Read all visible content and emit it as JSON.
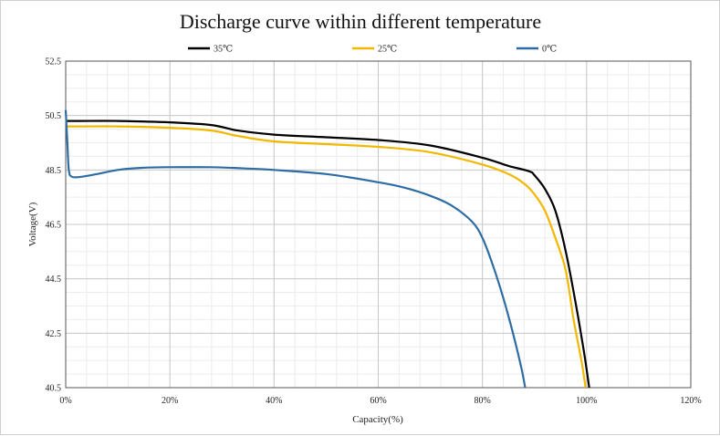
{
  "chart_data": {
    "type": "line",
    "title": "Discharge curve within different temperature",
    "xlabel": "Capacity(%)",
    "ylabel": "Voltage(V)",
    "xlim": [
      0,
      120
    ],
    "ylim": [
      40.5,
      52.5
    ],
    "x_ticks": [
      0,
      20,
      40,
      60,
      80,
      100,
      120
    ],
    "x_tick_labels": [
      "0%",
      "20%",
      "40%",
      "60%",
      "80%",
      "100%",
      "120%"
    ],
    "y_ticks": [
      40.5,
      42.5,
      44.5,
      46.5,
      48.5,
      50.5,
      52.5
    ],
    "y_tick_labels": [
      "40.5",
      "42.5",
      "44.5",
      "46.5",
      "48.5",
      "50.5",
      "52.5"
    ],
    "grid": true,
    "legend_position": "top",
    "series": [
      {
        "name": "35℃",
        "color": "#000000",
        "points": [
          [
            0,
            50.3
          ],
          [
            3,
            50.3
          ],
          [
            10,
            50.3
          ],
          [
            20,
            50.25
          ],
          [
            28,
            50.15
          ],
          [
            33,
            49.95
          ],
          [
            40,
            49.8
          ],
          [
            50,
            49.7
          ],
          [
            60,
            49.6
          ],
          [
            70,
            49.4
          ],
          [
            80,
            48.95
          ],
          [
            85,
            48.65
          ],
          [
            89,
            48.45
          ],
          [
            90,
            48.3
          ],
          [
            92,
            47.8
          ],
          [
            94,
            47.0
          ],
          [
            96,
            45.5
          ],
          [
            98,
            43.5
          ],
          [
            99.5,
            41.8
          ],
          [
            100.5,
            40.5
          ]
        ]
      },
      {
        "name": "25℃",
        "color": "#F2B800",
        "points": [
          [
            0,
            50.1
          ],
          [
            3,
            50.1
          ],
          [
            10,
            50.1
          ],
          [
            20,
            50.05
          ],
          [
            28,
            49.95
          ],
          [
            33,
            49.75
          ],
          [
            40,
            49.55
          ],
          [
            50,
            49.45
          ],
          [
            60,
            49.35
          ],
          [
            70,
            49.15
          ],
          [
            80,
            48.7
          ],
          [
            85,
            48.35
          ],
          [
            88,
            48.0
          ],
          [
            90,
            47.6
          ],
          [
            92,
            47.0
          ],
          [
            94,
            46.0
          ],
          [
            96,
            44.8
          ],
          [
            97.5,
            43.0
          ],
          [
            99,
            41.5
          ],
          [
            99.8,
            40.5
          ]
        ]
      },
      {
        "name": "0℃",
        "color": "#2E6DA4",
        "points": [
          [
            0,
            50.7
          ],
          [
            0.3,
            49.6
          ],
          [
            0.6,
            48.5
          ],
          [
            1.2,
            48.25
          ],
          [
            3,
            48.25
          ],
          [
            6,
            48.35
          ],
          [
            10,
            48.5
          ],
          [
            15,
            48.58
          ],
          [
            20,
            48.6
          ],
          [
            28,
            48.6
          ],
          [
            35,
            48.55
          ],
          [
            40,
            48.5
          ],
          [
            50,
            48.35
          ],
          [
            60,
            48.05
          ],
          [
            65,
            47.85
          ],
          [
            70,
            47.55
          ],
          [
            74,
            47.2
          ],
          [
            78,
            46.6
          ],
          [
            80,
            46.0
          ],
          [
            82,
            45.0
          ],
          [
            84,
            43.8
          ],
          [
            86,
            42.4
          ],
          [
            87.5,
            41.2
          ],
          [
            88.2,
            40.5
          ]
        ]
      }
    ]
  }
}
